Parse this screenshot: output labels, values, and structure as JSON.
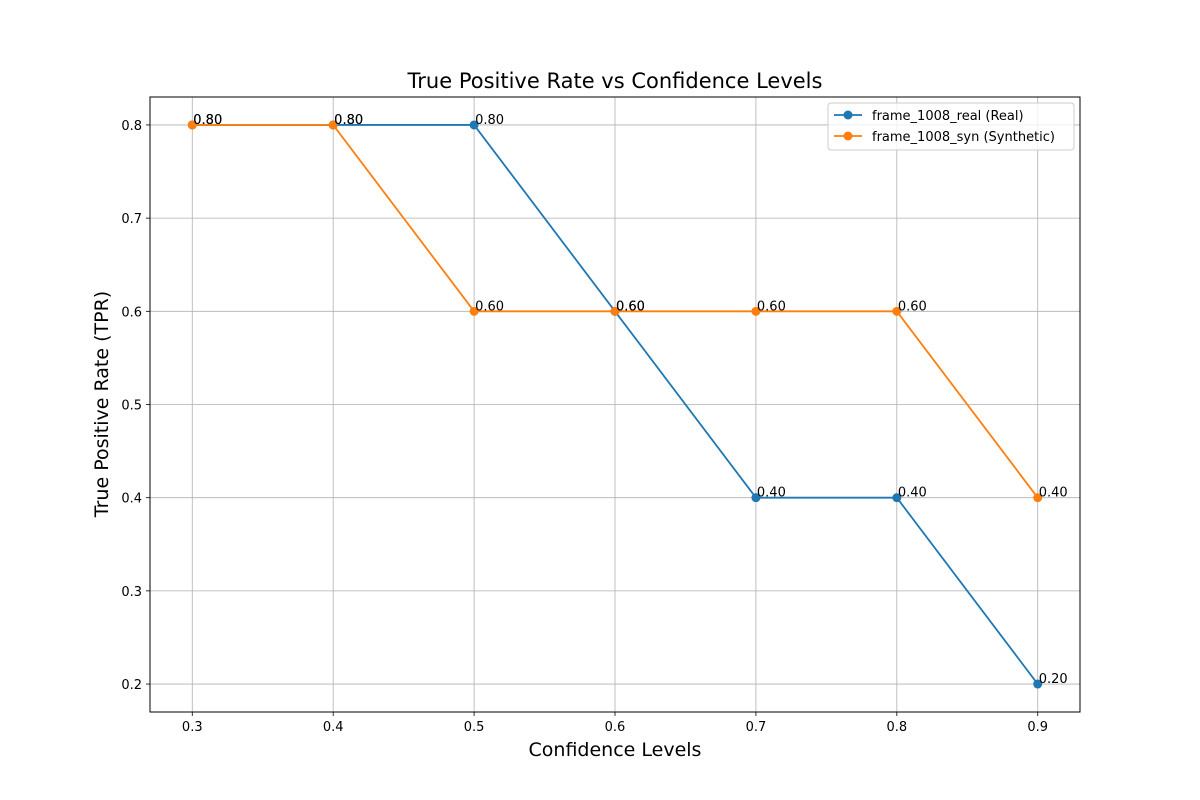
{
  "chart_data": {
    "type": "line",
    "title": "True Positive Rate vs Confidence Levels",
    "xlabel": "Confidence Levels",
    "ylabel": "True Positive Rate (TPR)",
    "x": [
      0.3,
      0.4,
      0.5,
      0.6,
      0.7,
      0.8,
      0.9
    ],
    "x_ticks": [
      "0.3",
      "0.4",
      "0.5",
      "0.6",
      "0.7",
      "0.8",
      "0.9"
    ],
    "y_ticks": [
      "0.2",
      "0.3",
      "0.4",
      "0.5",
      "0.6",
      "0.7",
      "0.8"
    ],
    "xlim": [
      0.27,
      0.93
    ],
    "ylim": [
      0.17,
      0.83
    ],
    "grid": true,
    "legend_position": "top-right",
    "series": [
      {
        "name": "frame_1008_real (Real)",
        "color": "#1f77b4",
        "values": [
          0.8,
          0.8,
          0.8,
          0.6,
          0.4,
          0.4,
          0.2
        ],
        "labels": [
          "0.80",
          "0.80",
          "0.80",
          "0.60",
          "0.40",
          "0.40",
          "0.20"
        ]
      },
      {
        "name": "frame_1008_syn (Synthetic)",
        "color": "#ff7f0e",
        "values": [
          0.8,
          0.8,
          0.6,
          0.6,
          0.6,
          0.6,
          0.4
        ],
        "labels": [
          "0.80",
          "0.80",
          "0.60",
          "0.60",
          "0.60",
          "0.60",
          "0.40"
        ]
      }
    ]
  }
}
